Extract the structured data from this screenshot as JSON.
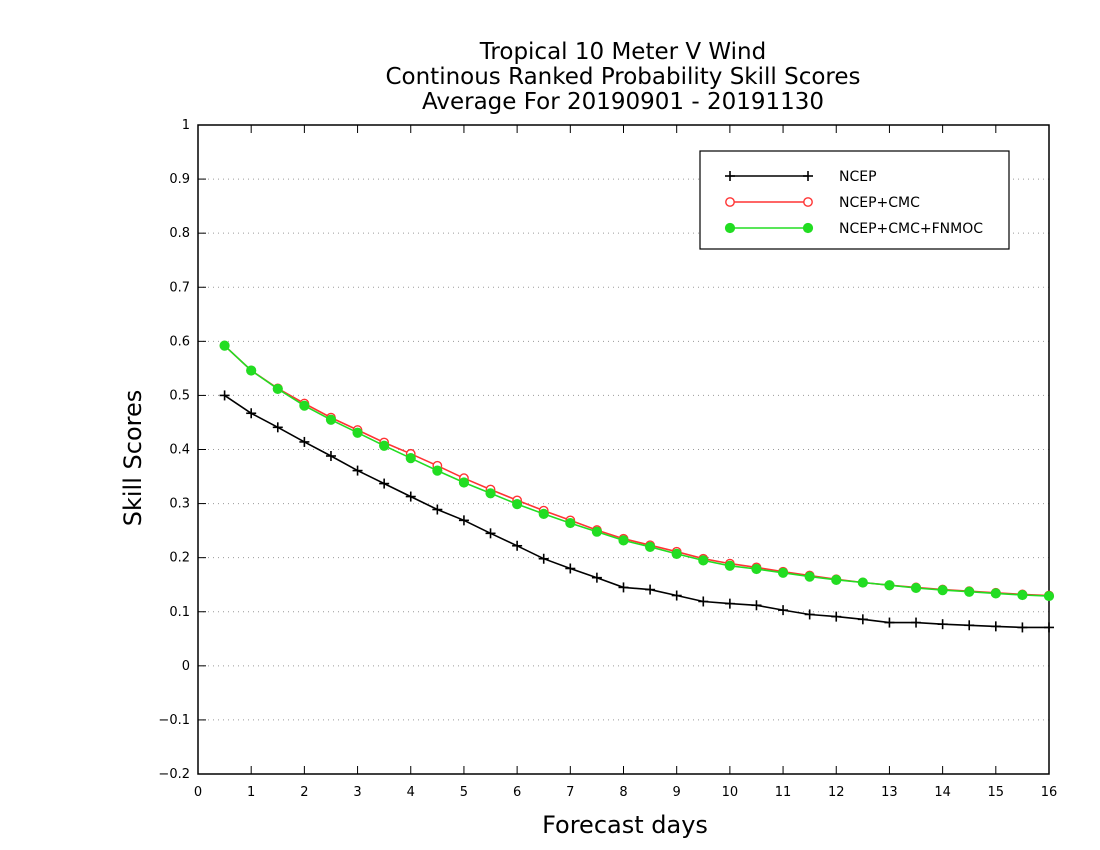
{
  "chart_data": {
    "type": "line",
    "title": [
      "Tropical 10 Meter V Wind",
      "Continous Ranked Probability Skill Scores",
      "Average For 20190901 - 20191130"
    ],
    "xlabel": "Forecast days",
    "ylabel": "Skill Scores",
    "xlim": [
      0,
      16
    ],
    "ylim": [
      -0.2,
      1
    ],
    "xticks": [
      0,
      1,
      2,
      3,
      4,
      5,
      6,
      7,
      8,
      9,
      10,
      11,
      12,
      13,
      14,
      15,
      16
    ],
    "yticks": [
      -0.2,
      -0.1,
      0,
      0.1,
      0.2,
      0.3,
      0.4,
      0.5,
      0.6,
      0.7,
      0.8,
      0.9,
      1
    ],
    "ytick_labels": [
      "−0.2",
      "−0.1",
      "0",
      "0.1",
      "0.2",
      "0.3",
      "0.4",
      "0.5",
      "0.6",
      "0.7",
      "0.8",
      "0.9",
      "1"
    ],
    "grid": "horizontal dotted",
    "legend": "top-right",
    "x": [
      0.5,
      1,
      1.5,
      2,
      2.5,
      3,
      3.5,
      4,
      4.5,
      5,
      5.5,
      6,
      6.5,
      7,
      7.5,
      8,
      8.5,
      9,
      9.5,
      10,
      10.5,
      11,
      11.5,
      12,
      12.5,
      13,
      13.5,
      14,
      14.5,
      15,
      15.5,
      16
    ],
    "series": [
      {
        "name": "NCEP",
        "color": "#000000",
        "marker": "plus",
        "values": [
          0.5,
          0.467,
          0.441,
          0.414,
          0.388,
          0.361,
          0.337,
          0.313,
          0.289,
          0.269,
          0.245,
          0.222,
          0.198,
          0.18,
          0.163,
          0.145,
          0.141,
          0.13,
          0.119,
          0.115,
          0.112,
          0.103,
          0.095,
          0.091,
          0.086,
          0.08,
          0.08,
          0.077,
          0.075,
          0.073,
          0.071,
          0.071
        ]
      },
      {
        "name": "NCEP+CMC",
        "color": "#ff3333",
        "marker": "open-circle",
        "values": [
          0.592,
          0.546,
          0.513,
          0.485,
          0.459,
          0.436,
          0.413,
          0.392,
          0.37,
          0.347,
          0.326,
          0.306,
          0.287,
          0.269,
          0.251,
          0.235,
          0.223,
          0.211,
          0.198,
          0.189,
          0.182,
          0.174,
          0.167,
          0.16,
          0.154,
          0.149,
          0.145,
          0.141,
          0.138,
          0.135,
          0.132,
          0.13
        ]
      },
      {
        "name": "NCEP+CMC+FNMOC",
        "color": "#22dd22",
        "marker": "filled-circle",
        "values": [
          0.592,
          0.546,
          0.512,
          0.481,
          0.455,
          0.431,
          0.407,
          0.384,
          0.361,
          0.339,
          0.319,
          0.299,
          0.281,
          0.264,
          0.248,
          0.232,
          0.22,
          0.207,
          0.195,
          0.185,
          0.179,
          0.172,
          0.165,
          0.159,
          0.154,
          0.149,
          0.144,
          0.14,
          0.137,
          0.134,
          0.131,
          0.129
        ]
      }
    ]
  }
}
